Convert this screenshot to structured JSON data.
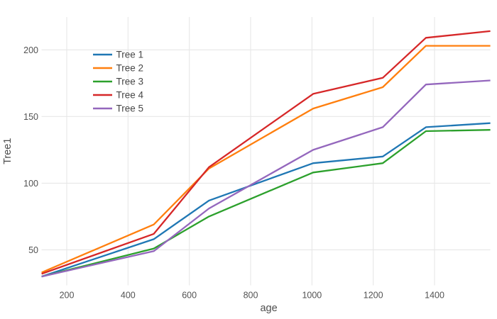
{
  "chart_data": {
    "type": "line",
    "title": "",
    "xlabel": "age",
    "ylabel": "Tree1",
    "x": [
      118,
      484,
      664,
      1004,
      1231,
      1372,
      1582
    ],
    "series": [
      {
        "name": "Tree 1",
        "color": "#1f77b4",
        "values": [
          30,
          58,
          87,
          115,
          120,
          142,
          145
        ]
      },
      {
        "name": "Tree 2",
        "color": "#ff7f0e",
        "values": [
          33,
          69,
          111,
          156,
          172,
          203,
          203
        ]
      },
      {
        "name": "Tree 3",
        "color": "#2ca02c",
        "values": [
          30,
          51,
          75,
          108,
          115,
          139,
          140
        ]
      },
      {
        "name": "Tree 4",
        "color": "#d62728",
        "values": [
          32,
          62,
          112,
          167,
          179,
          209,
          214
        ]
      },
      {
        "name": "Tree 5",
        "color": "#9467bd",
        "values": [
          30,
          49,
          81,
          125,
          142,
          174,
          177
        ]
      }
    ],
    "xticks": [
      200,
      400,
      600,
      800,
      1000,
      1200,
      1400
    ],
    "yticks": [
      50,
      100,
      150,
      200
    ],
    "xlim": [
      118,
      1582
    ],
    "ylim": [
      23.4,
      224.6
    ],
    "grid": true,
    "legend_position": "inside-top-left",
    "legend_items": [
      "Tree 1",
      "Tree 2",
      "Tree 3",
      "Tree 4",
      "Tree 5"
    ],
    "colors": {
      "background": "#ffffff",
      "gridline": "#e7e7e7",
      "tick_label": "#525252",
      "axis_title": "#4d4d4d",
      "legend_text": "#474747"
    }
  }
}
